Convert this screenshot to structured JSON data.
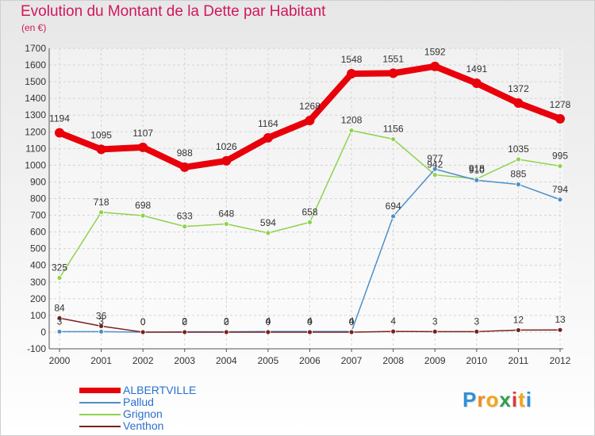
{
  "title": "Evolution du Montant de la Dette par Habitant",
  "subtitle": "(en €)",
  "logo": {
    "letters": [
      "P",
      "r",
      "o",
      "x",
      "i",
      "t",
      "i"
    ],
    "colors": [
      "#2f8fd8",
      "#ef8a1f",
      "#f2a51a",
      "#2d9f4f",
      "#e0353c",
      "#f2a51a",
      "#2f8fd8"
    ]
  },
  "chart_data": {
    "type": "line",
    "title": "Evolution du Montant de la Dette par Habitant",
    "subtitle": "(en €)",
    "x": [
      "2000",
      "2001",
      "2002",
      "2003",
      "2004",
      "2005",
      "2006",
      "2007",
      "2008",
      "2009",
      "2010",
      "2011",
      "2012"
    ],
    "ylim": [
      -100,
      1700
    ],
    "yticks": [
      -100,
      0,
      100,
      200,
      300,
      400,
      500,
      600,
      700,
      800,
      900,
      1000,
      1100,
      1200,
      1300,
      1400,
      1500,
      1600,
      1700
    ],
    "grid": true,
    "legend_position": "bottom-left",
    "series": [
      {
        "name": "ALBERTVILLE",
        "color": "#e8000b",
        "values": [
          1194,
          1095,
          1107,
          988,
          1026,
          1164,
          1268,
          1548,
          1551,
          1592,
          1491,
          1372,
          1278
        ]
      },
      {
        "name": "Pallud",
        "color": "#4e8fc9",
        "values": [
          3,
          3,
          0,
          2,
          2,
          4,
          4,
          4,
          694,
          977,
          910,
          885,
          794
        ]
      },
      {
        "name": "Grignon",
        "color": "#8fd24e",
        "values": [
          325,
          718,
          698,
          633,
          648,
          594,
          658,
          1208,
          1156,
          942,
          918,
          1035,
          995
        ]
      },
      {
        "name": "Venthon",
        "color": "#7a2020",
        "values": [
          84,
          36,
          0,
          0,
          0,
          0,
          0,
          0,
          4,
          3,
          3,
          12,
          13
        ]
      }
    ]
  }
}
